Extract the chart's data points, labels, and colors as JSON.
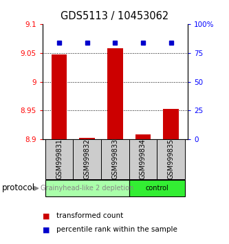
{
  "title": "GDS5113 / 10453062",
  "samples": [
    "GSM999831",
    "GSM999832",
    "GSM999833",
    "GSM999834",
    "GSM999835"
  ],
  "bar_values": [
    9.047,
    8.902,
    9.058,
    8.908,
    8.953
  ],
  "percentile_values": [
    84,
    84,
    84,
    84,
    84
  ],
  "ylim_left": [
    8.9,
    9.1
  ],
  "ylim_right": [
    0,
    100
  ],
  "yticks_left": [
    8.9,
    8.95,
    9.0,
    9.05,
    9.1
  ],
  "ytick_labels_left": [
    "8.9",
    "8.95",
    "9",
    "9.05",
    "9.1"
  ],
  "yticks_right": [
    0,
    25,
    50,
    75,
    100
  ],
  "ytick_labels_right": [
    "0",
    "25",
    "50",
    "75",
    "100%"
  ],
  "bar_color": "#cc0000",
  "percentile_color": "#0000cc",
  "bar_bottom": 8.9,
  "groups": [
    {
      "label": "Grainyhead-like 2 depletion",
      "samples": [
        0,
        1,
        2
      ],
      "color": "#aaffaa",
      "text_color": "#888888"
    },
    {
      "label": "control",
      "samples": [
        3,
        4
      ],
      "color": "#33ee33",
      "text_color": "#000000"
    }
  ],
  "protocol_label": "protocol",
  "legend_red_label": "transformed count",
  "legend_blue_label": "percentile rank within the sample",
  "label_area_color": "#cccccc",
  "dotted_yticks": [
    8.95,
    9.0,
    9.05
  ]
}
